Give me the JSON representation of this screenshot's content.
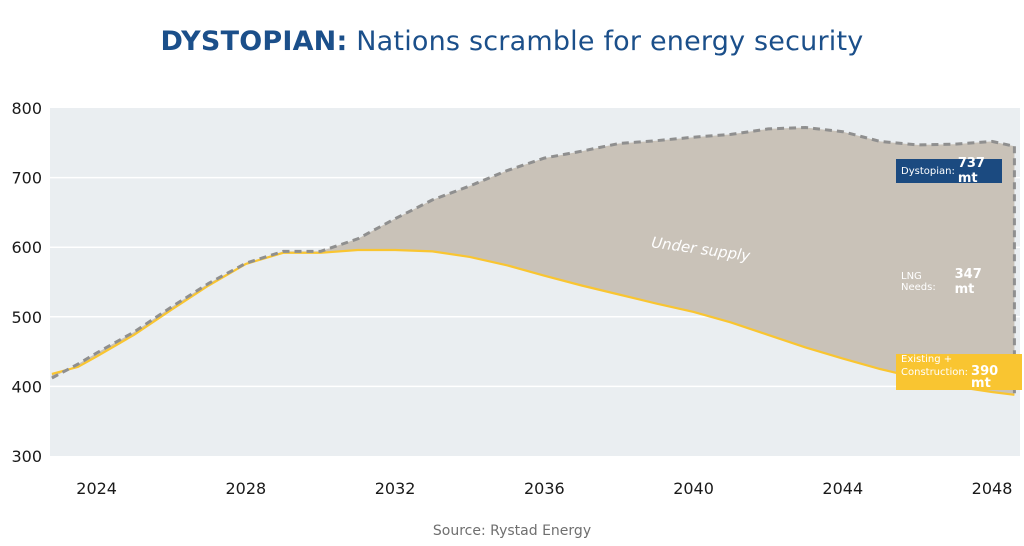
{
  "header": {
    "title_bold": "DYSTOPIAN:",
    "title_rest": " Nations scramble for energy security"
  },
  "source": "Source: Rystad Energy",
  "labels": {
    "dystopian_name": "Dystopian:",
    "dystopian_value": "737 mt",
    "lng_name": "LNG Needs:",
    "lng_value": "347 mt",
    "existing_line1": "Existing +",
    "existing_line2": "Construction:",
    "existing_value": "390 mt"
  },
  "colors": {
    "dystopian": "#8f8f8f",
    "existing": "#f9c531",
    "under_supply": "#c9c2b8",
    "plot_bg": "#eaeef1",
    "title": "#1b4f8a"
  },
  "chart_data": {
    "type": "area",
    "title": "DYSTOPIAN: Nations scramble for energy security",
    "ylim": [
      300,
      800
    ],
    "xlim": [
      2022.75,
      2048.75
    ],
    "yticks": [
      300,
      400,
      500,
      600,
      700,
      800
    ],
    "xticks": [
      2024,
      2028,
      2032,
      2036,
      2040,
      2044,
      2048
    ],
    "grid": true,
    "annotation": "Under supply",
    "series": [
      {
        "name": "Dystopian",
        "style": "dashed",
        "x": [
          2022.8,
          2023.5,
          2024,
          2025,
          2026,
          2027,
          2028,
          2029,
          2030,
          2031,
          2032,
          2033,
          2034,
          2035,
          2036,
          2037,
          2038,
          2039,
          2040,
          2041,
          2042,
          2043,
          2044,
          2045,
          2046,
          2047,
          2048,
          2048.6
        ],
        "values": [
          412,
          432,
          448,
          478,
          514,
          548,
          577,
          594,
          594,
          612,
          641,
          668,
          688,
          710,
          728,
          738,
          749,
          753,
          758,
          762,
          770,
          772,
          766,
          752,
          747,
          748,
          752,
          745
        ]
      },
      {
        "name": "Existing + Construction",
        "style": "solid",
        "x": [
          2022.8,
          2023.5,
          2024,
          2025,
          2026,
          2027,
          2028,
          2029,
          2030,
          2031,
          2032,
          2033,
          2034,
          2035,
          2036,
          2037,
          2038,
          2039,
          2040,
          2041,
          2042,
          2043,
          2044,
          2045,
          2046,
          2047,
          2048,
          2048.6
        ],
        "values": [
          418,
          428,
          443,
          474,
          510,
          545,
          576,
          592,
          592,
          596,
          596,
          594,
          586,
          574,
          559,
          545,
          532,
          519,
          507,
          492,
          474,
          456,
          440,
          425,
          412,
          400,
          392,
          388
        ]
      }
    ]
  }
}
